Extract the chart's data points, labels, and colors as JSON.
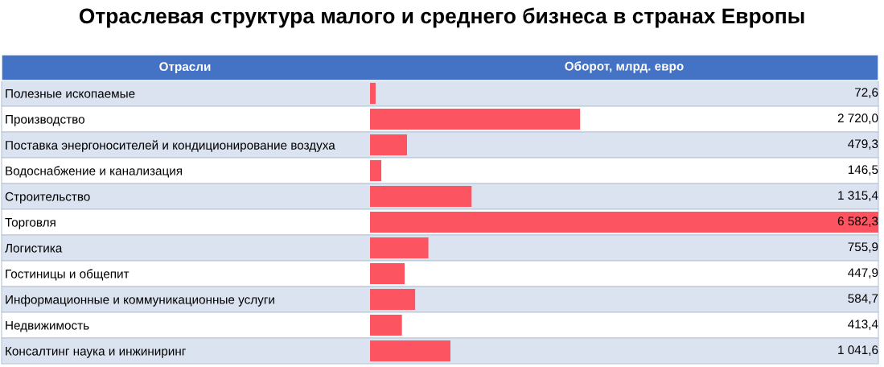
{
  "chart_data": {
    "type": "bar",
    "orientation": "horizontal",
    "title": "Отраслевая структура малого и среднего бизнеса в странах Европы",
    "ylabel": "Отрасли",
    "xlabel": "Оборот, млрд. евро",
    "categories": [
      "Полезные ископаемые",
      "Производство",
      "Поставка энергоносителей и кондиционирование воздуха",
      "Водоснабжение и канализация",
      "Строительство",
      "Торговля",
      "Логистика",
      "Гостиницы и общепит",
      "Информационные и коммуникационные услуги",
      "Недвижимость",
      "Консалтинг наука и инжиниринг"
    ],
    "values": [
      72.6,
      2720.0,
      479.3,
      146.5,
      1315.4,
      6582.3,
      755.9,
      447.9,
      584.7,
      413.4,
      1041.6
    ],
    "value_labels": [
      "72,6",
      "2 720,0",
      "479,3",
      "146,5",
      "1 315,4",
      "6 582,3",
      "755,9",
      "447,9",
      "584,7",
      "413,4",
      "1 041,6"
    ],
    "color": "#fc5460",
    "xlim": [
      0,
      6582.3
    ],
    "tick_labels": "y",
    "grid": false
  }
}
